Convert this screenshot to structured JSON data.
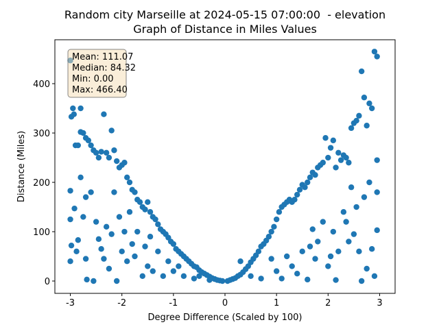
{
  "chart_data": {
    "type": "scatter",
    "title": "Random city Marseille at 2024-05-15 07:00:00  - elevation",
    "subtitle": "Graph of Distance in Miles Values",
    "x_label": "Degree Difference (Scaled by 100)",
    "y_label": "Distance (Miles)",
    "stats": [
      "Mean: 111.07",
      "Median: 84.32",
      "Min: 0.00",
      "Max: 466.40"
    ],
    "color": "#1f77b4",
    "xlim": [
      -3.3,
      3.3
    ],
    "ylim": [
      -25,
      489
    ],
    "xticks": [
      -3,
      -2,
      -1,
      0,
      1,
      2,
      3
    ],
    "yticks": [
      0,
      100,
      200,
      300,
      400
    ],
    "grid": false,
    "x": [
      -3,
      -2.98,
      -2.95,
      -2.93,
      -2.9,
      -2.85,
      -2.8,
      -2.8,
      -2.75,
      -2.7,
      -2.65,
      -2.6,
      -2.55,
      -2.5,
      -2.45,
      -2.4,
      -2.35,
      -2.3,
      -2.25,
      -2.2,
      -2.15,
      -2.1,
      -2.05,
      -2,
      -1.95,
      -1.9,
      -1.85,
      -1.8,
      -1.75,
      -1.7,
      -1.65,
      -1.6,
      -1.55,
      -1.5,
      -1.45,
      -1.4,
      -1.35,
      -1.3,
      -1.25,
      -1.2,
      -1.15,
      -1.1,
      -1.05,
      -1,
      -0.95,
      -0.9,
      -0.85,
      -0.8,
      -0.75,
      -0.7,
      -0.65,
      -0.6,
      -0.55,
      -0.5,
      -0.45,
      -0.4,
      -0.35,
      -0.3,
      -0.25,
      -0.2,
      -0.15,
      -0.1,
      -0.05,
      -3,
      -3,
      -2.98,
      -3,
      -2.92,
      -2.88,
      -2.85,
      -2.8,
      -2.75,
      -2.7,
      -2.7,
      -2.68,
      -2.6,
      -2.55,
      -2.5,
      -2.45,
      -2.4,
      -2.35,
      -2.3,
      -2.25,
      -2.2,
      -2.15,
      -2.1,
      -2.05,
      -2,
      -1.95,
      -1.9,
      -1.85,
      -1.8,
      -1.75,
      -1.7,
      -1.6,
      -1.55,
      -1.5,
      -1.45,
      -1.4,
      -1.3,
      -1.2,
      -1.1,
      -1,
      -0.9,
      -0.8,
      -0.6,
      -0.5,
      -0.3,
      0.05,
      0.1,
      0.15,
      0.2,
      0.25,
      0.3,
      0.35,
      0.4,
      0.45,
      0.5,
      0.55,
      0.6,
      0.65,
      0.7,
      0.75,
      0.8,
      0.85,
      0.9,
      0.95,
      1,
      1.05,
      1.1,
      1.15,
      1.2,
      1.25,
      1.3,
      1.35,
      1.4,
      1.45,
      1.5,
      1.55,
      1.6,
      1.65,
      1.7,
      1.75,
      1.8,
      1.85,
      1.9,
      1.95,
      2,
      2.05,
      2.1,
      2.15,
      2.2,
      2.25,
      2.3,
      2.35,
      2.4,
      2.45,
      2.5,
      2.55,
      2.6,
      2.65,
      2.7,
      2.75,
      2.8,
      2.85,
      2.9,
      2.95,
      2.95,
      0.3,
      0.5,
      0.7,
      0.9,
      1,
      1.1,
      1.2,
      1.3,
      1.4,
      1.5,
      1.6,
      1.65,
      1.7,
      1.75,
      1.8,
      1.9,
      2,
      2.05,
      2.1,
      2.15,
      2.2,
      2.3,
      2.35,
      2.4,
      2.45,
      2.5,
      2.55,
      2.6,
      2.65,
      2.7,
      2.75,
      2.8,
      2.85,
      2.9,
      2.95,
      2.95
    ],
    "values": [
      447,
      333,
      350,
      338,
      275,
      275,
      350,
      302,
      300,
      290,
      285,
      275,
      265,
      260,
      250,
      262,
      338,
      260,
      250,
      305,
      265,
      243,
      230,
      235,
      240,
      210,
      200,
      185,
      180,
      165,
      160,
      150,
      145,
      160,
      140,
      130,
      125,
      115,
      105,
      100,
      95,
      88,
      80,
      75,
      65,
      60,
      55,
      50,
      45,
      40,
      35,
      30,
      28,
      22,
      18,
      15,
      12,
      9,
      6,
      4,
      2,
      1,
      0,
      183,
      125,
      72,
      40,
      147,
      60,
      83,
      210,
      130,
      170,
      45,
      3,
      180,
      0,
      120,
      85,
      65,
      45,
      110,
      25,
      95,
      180,
      0,
      130,
      60,
      100,
      40,
      140,
      75,
      50,
      100,
      10,
      70,
      30,
      90,
      20,
      60,
      10,
      40,
      20,
      30,
      10,
      5,
      10,
      2,
      0,
      2,
      4,
      6,
      10,
      13,
      18,
      24,
      30,
      38,
      45,
      52,
      60,
      70,
      75,
      82,
      90,
      100,
      110,
      125,
      140,
      150,
      155,
      160,
      165,
      160,
      165,
      175,
      185,
      195,
      190,
      200,
      210,
      220,
      215,
      230,
      235,
      240,
      290,
      250,
      270,
      285,
      230,
      260,
      245,
      255,
      250,
      240,
      310,
      320,
      325,
      335,
      425,
      372,
      315,
      360,
      350,
      465,
      455,
      245,
      40,
      10,
      5,
      45,
      20,
      5,
      50,
      30,
      15,
      60,
      3,
      70,
      105,
      45,
      80,
      120,
      30,
      50,
      100,
      2,
      60,
      140,
      120,
      80,
      190,
      95,
      150,
      60,
      0,
      170,
      25,
      200,
      65,
      10,
      103,
      180
    ]
  }
}
